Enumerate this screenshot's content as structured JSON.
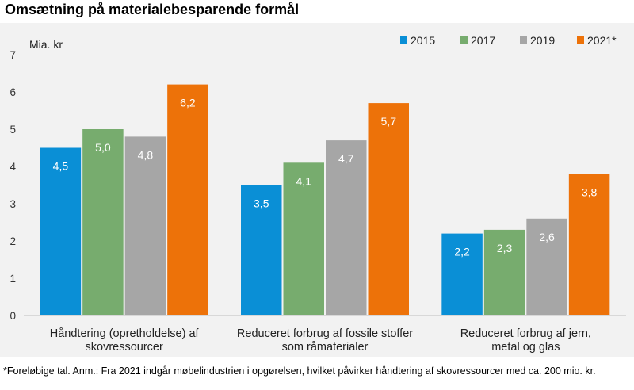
{
  "title": "Omsætning på materialebesparende formål",
  "footnote": "*Foreløbige tal. Anm.: Fra 2021 indgår møbelindustrien i opgørelsen, hvilket påvirker håndtering af skovressourcer med ca. 200 mio. kr.",
  "chart_data": {
    "type": "bar",
    "title": "Omsætning på materialebesparende formål",
    "ylabel": "Mia. kr",
    "ylim": [
      0,
      7
    ],
    "yticks": [
      "0",
      "1",
      "2",
      "3",
      "4",
      "5",
      "6",
      "7"
    ],
    "grid": false,
    "legend_position": "top-right",
    "categories": [
      [
        "Håndtering (opretholdelse) af",
        "skovressourcer"
      ],
      [
        "Reduceret forbrug af fossile stoffer",
        "som råmaterialer"
      ],
      [
        "Reduceret forbrug af jern,",
        "metal og glas"
      ]
    ],
    "series": [
      {
        "name": "2015",
        "color": "#0a8fd6",
        "values": [
          4.5,
          3.5,
          2.2
        ],
        "labels": [
          "4,5",
          "3,5",
          "2,2"
        ]
      },
      {
        "name": "2017",
        "color": "#77ac6e",
        "values": [
          5.0,
          4.1,
          2.3
        ],
        "labels": [
          "5,0",
          "4,1",
          "2,3"
        ]
      },
      {
        "name": "2019",
        "color": "#a6a6a6",
        "values": [
          4.8,
          4.7,
          2.6
        ],
        "labels": [
          "4,8",
          "4,7",
          "2,6"
        ]
      },
      {
        "name": "2021*",
        "color": "#ed7209",
        "values": [
          6.2,
          5.7,
          3.8
        ],
        "labels": [
          "6,2",
          "5,7",
          "3,8"
        ]
      }
    ]
  }
}
